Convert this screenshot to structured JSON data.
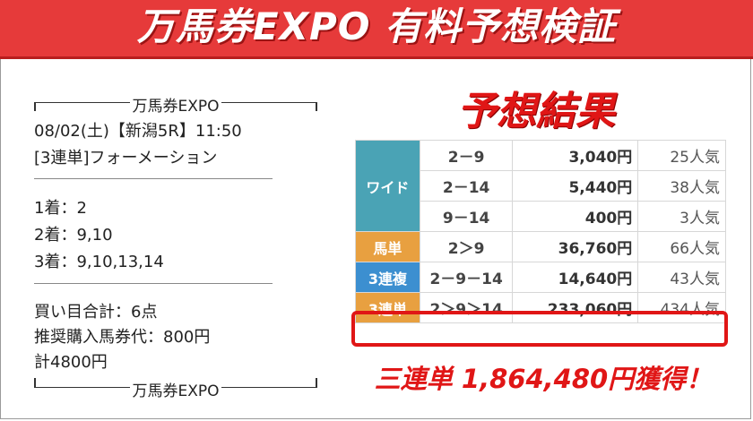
{
  "banner": {
    "title": "万馬券EXPO 有料予想検証"
  },
  "prediction": {
    "header_label": "万馬券EXPO",
    "date_line": "08/02(土)【新潟5R】11:50",
    "bet_type": "[3連単]フォーメーション",
    "picks": [
      "1着：2",
      "2着：9,10",
      "3着：9,10,13,14"
    ],
    "totals": [
      "買い目合計：6点",
      "推奨購入馬券代：800円",
      "計4800円"
    ],
    "footer_label": "万馬券EXPO"
  },
  "result": {
    "title": "予想結果",
    "rows": [
      {
        "type": "ワイド",
        "combo": "2－9",
        "payout": "3,040円",
        "popularity": "25人気"
      },
      {
        "type": "",
        "combo": "2－14",
        "payout": "5,440円",
        "popularity": "38人気"
      },
      {
        "type": "",
        "combo": "9－14",
        "payout": "400円",
        "popularity": "3人気"
      },
      {
        "type": "馬単",
        "combo": "2＞9",
        "payout": "36,760円",
        "popularity": "66人気"
      },
      {
        "type": "3連複",
        "combo": "2－9－14",
        "payout": "14,640円",
        "popularity": "43人気"
      },
      {
        "type": "3連単",
        "combo": "2＞9＞14",
        "payout": "233,060円",
        "popularity": "434人気"
      }
    ],
    "colors": {
      "wide": "#4aa3b5",
      "umatan": "#e8a040",
      "renpuku": "#3c8fd0",
      "highlight": "#e01616"
    }
  },
  "win_message": "三連単 1,864,480円獲得！"
}
